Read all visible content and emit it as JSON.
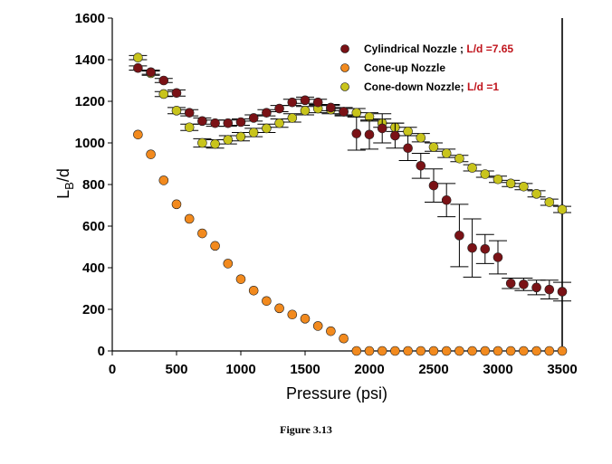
{
  "caption": "Figure  3.13",
  "chart_data": {
    "type": "scatter",
    "xlabel": "Pressure (psi)",
    "ylabel_main": "L",
    "ylabel_sub": "B",
    "ylabel_tail": "/d",
    "xlim": [
      0,
      3500
    ],
    "ylim": [
      0,
      1600
    ],
    "xticks": [
      0,
      500,
      1000,
      1500,
      2000,
      2500,
      3000,
      3500
    ],
    "yticks": [
      0,
      200,
      400,
      600,
      800,
      1000,
      1200,
      1400,
      1600
    ],
    "grid": false,
    "legend_position": "top-right",
    "series": [
      {
        "name": "Cylindrical Nozzle ; ",
        "name_accent": "L/d =7.65",
        "color": "#7a1216",
        "x": [
          200,
          300,
          400,
          500,
          600,
          700,
          800,
          900,
          1000,
          1100,
          1200,
          1300,
          1400,
          1500,
          1600,
          1700,
          1800,
          1900,
          2000,
          2100,
          2200,
          2300,
          2400,
          2500,
          2600,
          2700,
          2800,
          2900,
          3000,
          3100,
          3200,
          3300,
          3400,
          3500
        ],
        "y": [
          1360,
          1340,
          1300,
          1240,
          1145,
          1105,
          1095,
          1095,
          1100,
          1120,
          1145,
          1165,
          1195,
          1205,
          1195,
          1170,
          1150,
          1045,
          1040,
          1070,
          1035,
          975,
          890,
          795,
          725,
          555,
          495,
          490,
          450,
          325,
          320,
          305,
          295,
          285
        ],
        "err": [
          10,
          10,
          10,
          15,
          15,
          15,
          15,
          15,
          15,
          15,
          15,
          15,
          15,
          15,
          15,
          15,
          15,
          80,
          70,
          70,
          60,
          60,
          60,
          80,
          80,
          150,
          140,
          70,
          80,
          25,
          30,
          35,
          45,
          45
        ]
      },
      {
        "name": "Cone-up Nozzle",
        "color": "#f28a1e",
        "x": [
          200,
          300,
          400,
          500,
          600,
          700,
          800,
          900,
          1000,
          1100,
          1200,
          1300,
          1400,
          1500,
          1600,
          1700,
          1800,
          1900,
          2000,
          2100,
          2200,
          2300,
          2400,
          2500,
          2600,
          2700,
          2800,
          2900,
          3000,
          3100,
          3200,
          3300,
          3400,
          3500
        ],
        "y": [
          1040,
          945,
          820,
          705,
          635,
          565,
          505,
          420,
          345,
          290,
          240,
          205,
          175,
          155,
          120,
          95,
          60,
          0,
          0,
          0,
          0,
          0,
          0,
          0,
          0,
          0,
          0,
          0,
          0,
          0,
          0,
          0,
          0,
          0
        ],
        "err": [
          0,
          0,
          0,
          0,
          0,
          0,
          0,
          0,
          0,
          0,
          0,
          0,
          0,
          0,
          0,
          0,
          0,
          0,
          0,
          0,
          0,
          0,
          0,
          0,
          0,
          0,
          0,
          0,
          0,
          0,
          0,
          0,
          0,
          0
        ]
      },
      {
        "name": "Cone-down Nozzle; ",
        "name_accent": "L/d =1",
        "color": "#c8c41c",
        "x": [
          200,
          300,
          400,
          500,
          600,
          700,
          800,
          900,
          1000,
          1100,
          1200,
          1300,
          1400,
          1500,
          1600,
          1700,
          1800,
          1900,
          2000,
          2100,
          2200,
          2300,
          2400,
          2500,
          2600,
          2700,
          2800,
          2900,
          3000,
          3100,
          3200,
          3300,
          3400,
          3500
        ],
        "y": [
          1410,
          1335,
          1235,
          1155,
          1075,
          1000,
          995,
          1015,
          1030,
          1050,
          1070,
          1095,
          1120,
          1155,
          1165,
          1160,
          1150,
          1145,
          1125,
          1095,
          1075,
          1055,
          1025,
          980,
          950,
          925,
          880,
          850,
          825,
          805,
          790,
          755,
          715,
          680
        ],
        "err": [
          10,
          10,
          12,
          15,
          15,
          20,
          20,
          20,
          20,
          20,
          20,
          20,
          20,
          20,
          20,
          20,
          20,
          20,
          20,
          20,
          20,
          20,
          20,
          20,
          20,
          15,
          15,
          15,
          15,
          15,
          15,
          15,
          15,
          15
        ]
      }
    ]
  }
}
